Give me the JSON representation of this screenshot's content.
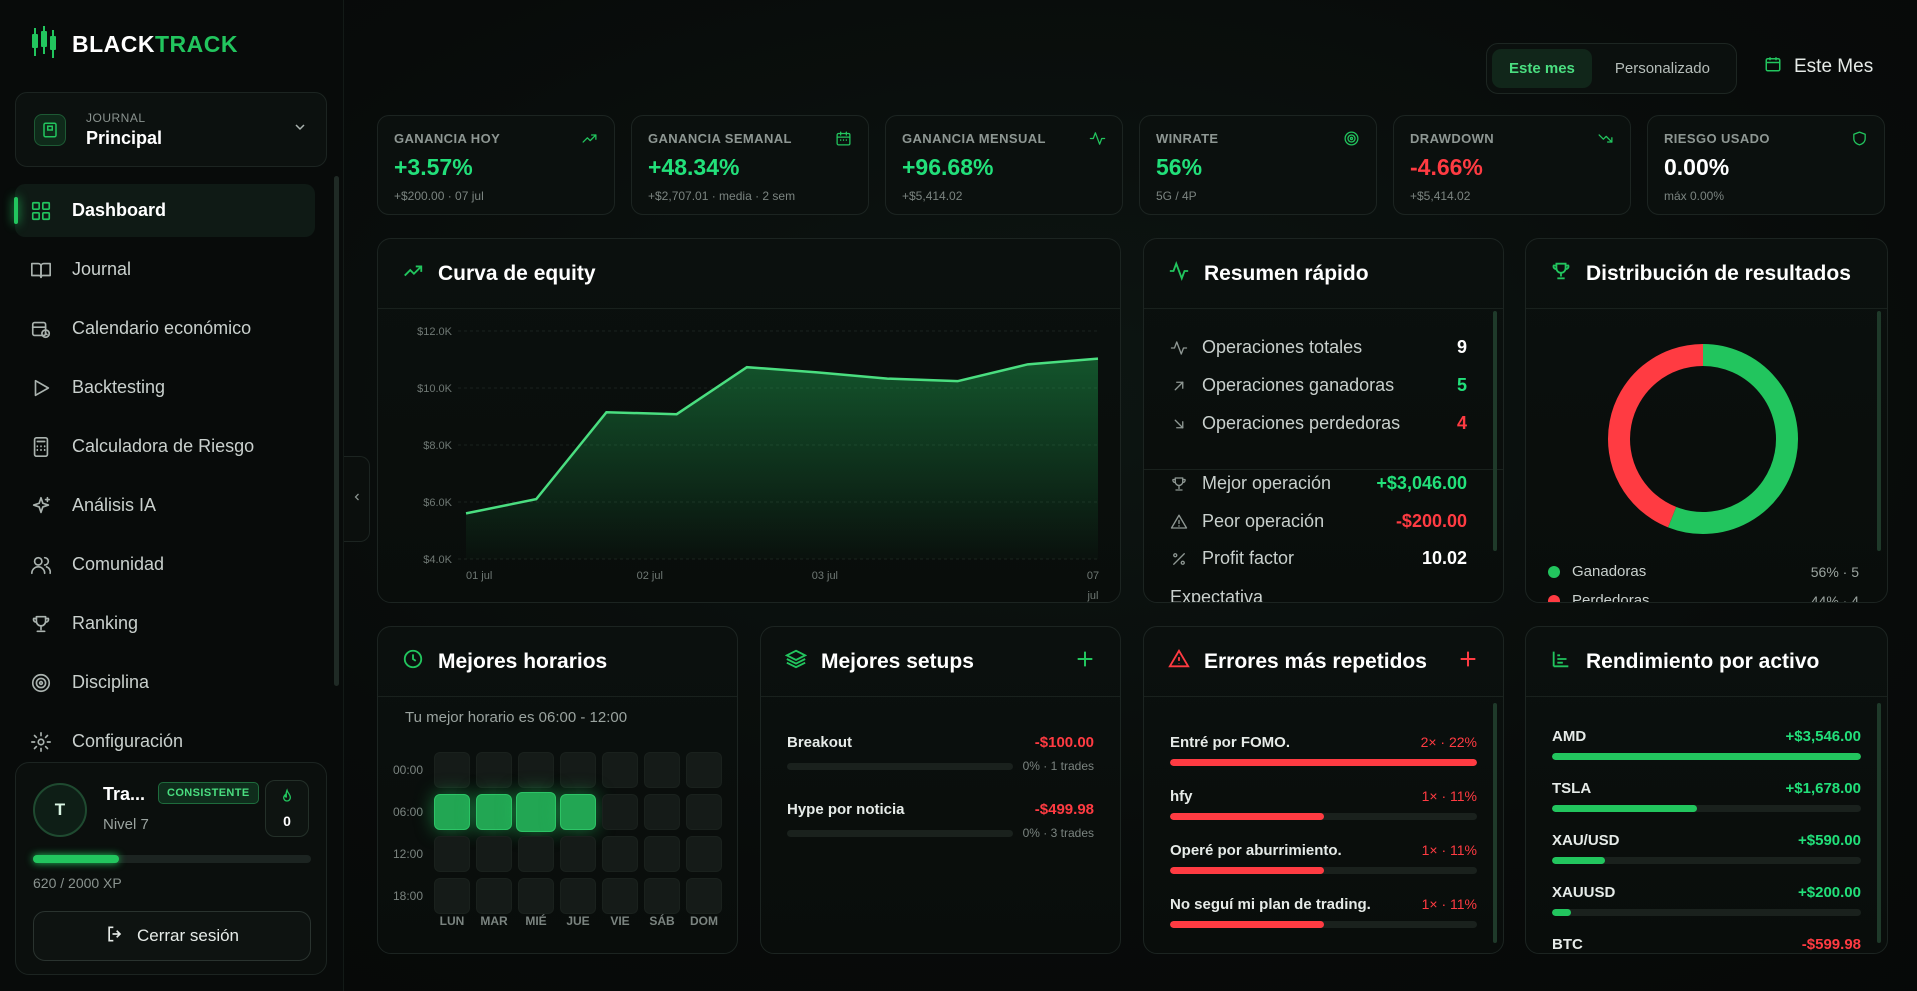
{
  "brand": {
    "part1": "BLACK",
    "part2": "TRACK"
  },
  "journal": {
    "label": "JOURNAL",
    "value": "Principal"
  },
  "nav": [
    {
      "label": "Dashboard",
      "icon": "grid-icon",
      "active": true
    },
    {
      "label": "Journal",
      "icon": "book-icon"
    },
    {
      "label": "Calendario económico",
      "icon": "calendar-clock-icon"
    },
    {
      "label": "Backtesting",
      "icon": "play-icon"
    },
    {
      "label": "Calculadora de Riesgo",
      "icon": "calculator-icon"
    },
    {
      "label": "Análisis IA",
      "icon": "sparkles-icon"
    },
    {
      "label": "Comunidad",
      "icon": "users-icon"
    },
    {
      "label": "Ranking",
      "icon": "trophy-icon"
    },
    {
      "label": "Disciplina",
      "icon": "target-icon"
    },
    {
      "label": "Configuración",
      "icon": "gear-icon"
    }
  ],
  "user": {
    "initial": "T",
    "name": "Tra...",
    "badge": "CONSISTENTE",
    "level": "Nivel 7",
    "streak": "0",
    "xp_text": "620 / 2000 XP",
    "xp_fraction": 0.31,
    "logout": "Cerrar sesión"
  },
  "top": {
    "seg_on": "Este mes",
    "seg_off": "Personalizado",
    "date": "Este Mes"
  },
  "kpis": [
    {
      "label": "GANANCIA HOY",
      "value": "+3.57%",
      "sub": "+$200.00 · 07 jul",
      "tone": "green",
      "icon": "trending-up-icon"
    },
    {
      "label": "GANANCIA SEMANAL",
      "value": "+48.34%",
      "sub": "+$2,707.01 · media · 2 sem",
      "tone": "green",
      "icon": "calendar-icon"
    },
    {
      "label": "GANANCIA MENSUAL",
      "value": "+96.68%",
      "sub": "+$5,414.02",
      "tone": "green",
      "icon": "activity-icon"
    },
    {
      "label": "WINRATE",
      "value": "56%",
      "sub": "5G / 4P",
      "tone": "green",
      "icon": "target-icon"
    },
    {
      "label": "DRAWDOWN",
      "value": "-4.66%",
      "sub": "+$5,414.02",
      "tone": "red",
      "icon": "trending-down-icon"
    },
    {
      "label": "RIESGO USADO",
      "value": "0.00%",
      "sub": "máx 0.00%",
      "tone": "white",
      "icon": "shield-icon"
    }
  ],
  "equity": {
    "title": "Curva de equity",
    "chart_data": {
      "type": "area",
      "yticks": [
        "$12.0K",
        "$10.0K",
        "$8.0K",
        "$6.0K",
        "$4.0K"
      ],
      "ylim": [
        4000,
        12000
      ],
      "xticks": [
        "01 jul",
        "02 jul",
        "03 jul",
        "07 jul"
      ],
      "values": [
        5600,
        6100,
        9150,
        9080,
        10730,
        10550,
        10330,
        10240,
        10830,
        11030
      ]
    }
  },
  "resumen": {
    "title": "Resumen rápido",
    "rows": [
      {
        "label": "Operaciones totales",
        "value": "9",
        "tone": "white",
        "icon": "activity-icon"
      },
      {
        "label": "Operaciones ganadoras",
        "value": "5",
        "tone": "green",
        "icon": "arrow-up-right-icon"
      },
      {
        "label": "Operaciones perdedoras",
        "value": "4",
        "tone": "red",
        "icon": "arrow-down-right-icon"
      },
      {
        "label": "Mejor operación",
        "value": "+$3,046.00",
        "tone": "green",
        "icon": "trophy-icon"
      },
      {
        "label": "Peor operación",
        "value": "-$200.00",
        "tone": "red",
        "icon": "warning-icon"
      },
      {
        "label": "Profit factor",
        "value": "10.02",
        "tone": "white",
        "icon": "percent-icon"
      },
      {
        "label": "Expectativa",
        "value": "",
        "tone": "white",
        "icon": "none"
      }
    ]
  },
  "distribucion": {
    "title": "Distribución de resultados",
    "chart_data": {
      "type": "pie",
      "slices": [
        {
          "name": "Ganadoras",
          "value": 56,
          "color": "#22c55e",
          "label": "56% · 5"
        },
        {
          "name": "Perdedoras",
          "value": 44,
          "color": "#ff3b42",
          "label": "44% · 4"
        }
      ]
    }
  },
  "horarios": {
    "title": "Mejores horarios",
    "subtitle": "Tu mejor horario es 06:00 - 12:00",
    "rows": [
      "00:00",
      "06:00",
      "12:00",
      "18:00"
    ],
    "days": [
      "LUN",
      "MAR",
      "MIÉ",
      "JUE",
      "VIE",
      "SÁB",
      "DOM"
    ],
    "hot": [
      [
        1,
        0
      ],
      [
        1,
        1
      ],
      [
        1,
        2
      ],
      [
        1,
        3
      ]
    ]
  },
  "setups": {
    "title": "Mejores setups",
    "items": [
      {
        "name": "Breakout",
        "value": "-$100.00",
        "meta": "0% · 1 trades"
      },
      {
        "name": "Hype por noticia",
        "value": "-$499.98",
        "meta": "0% · 3 trades"
      }
    ]
  },
  "errores": {
    "title": "Errores más repetidos",
    "items": [
      {
        "name": "Entré por FOMO.",
        "value": "2× · 22%",
        "fill": 1.0
      },
      {
        "name": "hfy",
        "value": "1× · 11%",
        "fill": 0.5
      },
      {
        "name": "Operé por aburrimiento.",
        "value": "1× · 11%",
        "fill": 0.5
      },
      {
        "name": "No seguí mi plan de trading.",
        "value": "1× · 11%",
        "fill": 0.5
      }
    ]
  },
  "activos": {
    "title": "Rendimiento por activo",
    "items": [
      {
        "name": "AMD",
        "value": "+$3,546.00",
        "fill": 1.0,
        "tone": "green"
      },
      {
        "name": "TSLA",
        "value": "+$1,678.00",
        "fill": 0.47,
        "tone": "green"
      },
      {
        "name": "XAU/USD",
        "value": "+$590.00",
        "fill": 0.17,
        "tone": "green"
      },
      {
        "name": "XAUUSD",
        "value": "+$200.00",
        "fill": 0.06,
        "tone": "green"
      },
      {
        "name": "BTC",
        "value": "-$599.98",
        "fill": 0.0,
        "tone": "red"
      }
    ]
  }
}
